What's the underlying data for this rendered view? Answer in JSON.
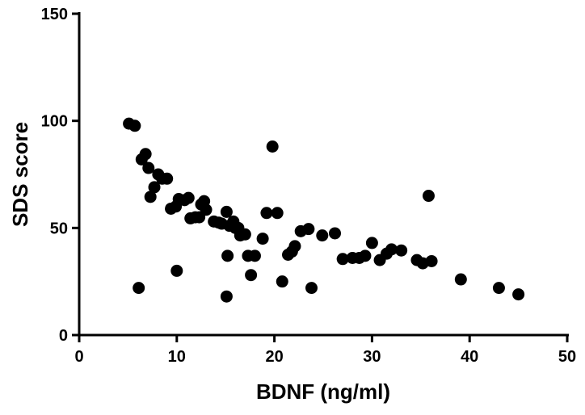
{
  "chart_data": {
    "type": "scatter",
    "x_label": "BDNF (ng/ml)",
    "y_label": "SDS score",
    "xlim": [
      0,
      50
    ],
    "ylim": [
      0,
      150
    ],
    "xticks": [
      0,
      10,
      20,
      30,
      40,
      50
    ],
    "yticks": [
      0,
      50,
      100,
      150
    ],
    "color": "#000000",
    "x": [
      5.1,
      5.7,
      6.1,
      6.4,
      6.8,
      7.1,
      7.3,
      7.7,
      8.1,
      8.5,
      9.0,
      9.4,
      9.9,
      10.0,
      10.2,
      10.8,
      11.2,
      11.4,
      11.9,
      12.3,
      12.5,
      12.8,
      13.0,
      13.8,
      14.3,
      14.6,
      15.1,
      15.1,
      15.2,
      15.4,
      15.8,
      16.0,
      16.3,
      16.5,
      17.0,
      17.3,
      17.6,
      18.0,
      18.8,
      19.2,
      19.8,
      20.3,
      20.8,
      21.4,
      21.8,
      22.1,
      22.7,
      23.5,
      23.8,
      24.9,
      26.2,
      27.0,
      28.0,
      28.7,
      29.3,
      30.0,
      30.8,
      31.5,
      32.0,
      33.0,
      34.6,
      35.2,
      35.8,
      36.1,
      39.1,
      43.0,
      45.0
    ],
    "values": [
      98.7,
      97.7,
      22,
      82,
      84.5,
      78,
      64.5,
      69,
      75,
      73,
      73,
      59,
      60,
      30,
      63.5,
      63,
      64,
      54.5,
      55,
      55,
      61,
      62.5,
      58.5,
      53,
      52.5,
      52,
      57.5,
      18,
      37,
      51,
      53,
      50,
      50,
      46.5,
      47,
      37,
      28,
      37,
      45,
      57,
      88,
      57,
      25,
      37.5,
      39,
      41.5,
      48.5,
      49.5,
      22,
      46.5,
      47.5,
      35.5,
      36,
      36,
      37,
      43,
      35,
      38,
      40,
      39.5,
      35,
      33.5,
      65,
      34.5,
      26,
      22,
      19
    ]
  }
}
